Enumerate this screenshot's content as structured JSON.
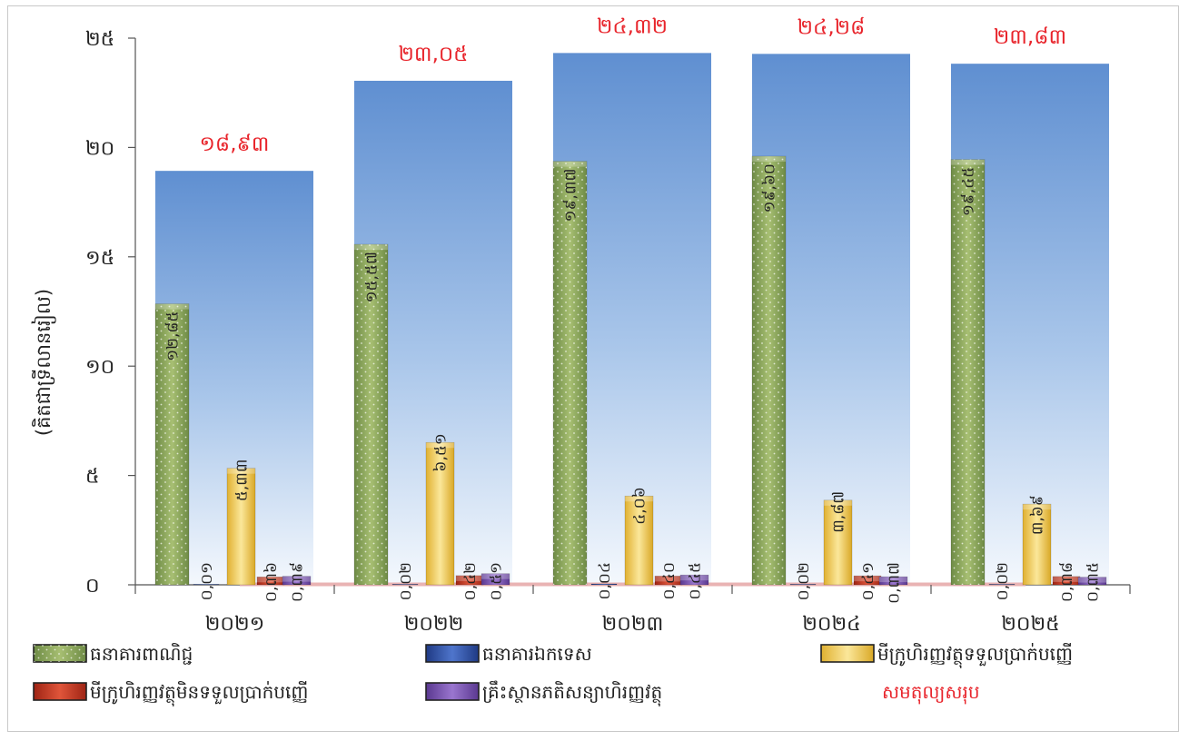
{
  "chart_data": {
    "type": "bar",
    "ylabel": "(គិតជាទ្រីលានរៀល)",
    "ylim": [
      0,
      25
    ],
    "yticks": [
      {
        "value": 0,
        "label": "០"
      },
      {
        "value": 5,
        "label": "៥"
      },
      {
        "value": 10,
        "label": "១០"
      },
      {
        "value": 15,
        "label": "១៥"
      },
      {
        "value": 20,
        "label": "២០"
      },
      {
        "value": 25,
        "label": "២៥"
      }
    ],
    "categories": [
      "២០២១",
      "២០២២",
      "២០២៣",
      "២០២៤",
      "២០២៥"
    ],
    "series": [
      {
        "name": "ធនាគារពាណិជ្ជ",
        "color": "#8aa35a",
        "values": [
          12.85,
          15.57,
          19.37,
          19.6,
          19.45
        ],
        "labels": [
          "១២,៨៥",
          "១៥,៥៧",
          "១៩,៣៧",
          "១៩,៦០",
          "១៩,៤៥"
        ]
      },
      {
        "name": "ធនាគារឯកទេស",
        "color": "#2f4fa8",
        "values": [
          0.01,
          0.02,
          0.04,
          0.02,
          0.02
        ],
        "labels": [
          "០,០១",
          "០,០២",
          "០,០៤",
          "០,០២",
          "០,០២"
        ]
      },
      {
        "name": "មីក្រូហិរញ្ញវត្ថុទទួលប្រាក់បញ្ញើ",
        "color": "#f2c94c",
        "values": [
          5.33,
          6.51,
          4.06,
          3.87,
          3.69
        ],
        "labels": [
          "៥,៣៣",
          "៦,៥១",
          "៤,០៦",
          "៣,៨៧",
          "៣,៦៩"
        ]
      },
      {
        "name": "មីក្រូហិរញ្ញវត្ថុមិនទទួលប្រាក់បញ្ញើ",
        "color": "#c8341f",
        "values": [
          0.36,
          0.42,
          0.4,
          0.41,
          0.38
        ],
        "labels": [
          "០,៣៦",
          "០,៤២",
          "០,៤០",
          "០,៤១",
          "០,៣៨"
        ]
      },
      {
        "name": "គ្រឹះស្ថានភតិសន្យាហិរញ្ញវត្ថុ",
        "color": "#7a4fb0",
        "values": [
          0.39,
          0.51,
          0.45,
          0.37,
          0.35
        ],
        "labels": [
          "០,៣៩",
          "០,៥១",
          "០,៤៥",
          "០,៣៧",
          "០,៣៥"
        ]
      }
    ],
    "totals": {
      "name": "សមតុល្យសរុប",
      "color": "#e8242b",
      "values": [
        18.93,
        23.05,
        24.32,
        24.28,
        23.83
      ],
      "labels": [
        "១៨,៩៣",
        "២៣,០៥",
        "២៤,៣២",
        "២៤,២៨",
        "២៣,៨៣"
      ]
    },
    "legend": "bottom",
    "grid": false
  }
}
